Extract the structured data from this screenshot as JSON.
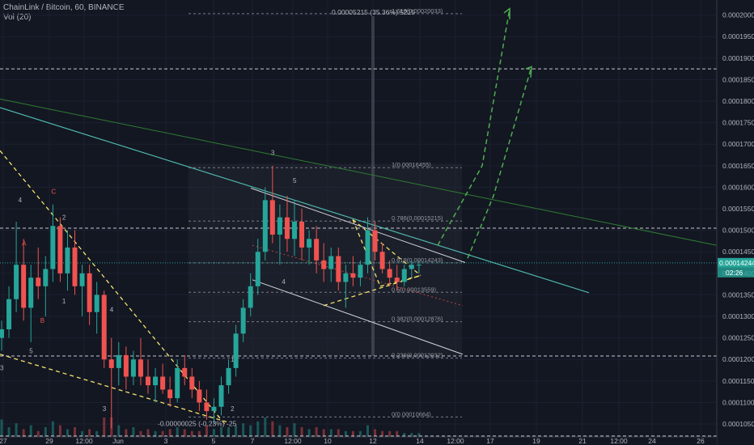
{
  "header": {
    "symbol_line": "ChainLink / Bitcoin, 60, BINANCE",
    "vol_line": "Vol (20)"
  },
  "colors": {
    "background": "#131722",
    "up_candle": "#26a69a",
    "down_candle": "#ef5350",
    "projection_arrow": "#4caf50",
    "trend_line_teal": "#4db6ac",
    "trend_line_green": "#2e7d32",
    "yellow_dashed": "#f5e36b",
    "price_tag": "#26a69a",
    "countdown_tag": "#26a69a"
  },
  "chart_data": {
    "type": "candlestick",
    "y_axis": {
      "scale": "linear",
      "range": [
        0.000102,
        0.0002035
      ],
      "ticks": [
        "0.00020000",
        "0.00019500",
        "0.00019000",
        "0.00018500",
        "0.00018000",
        "0.00017500",
        "0.00017000",
        "0.00016500",
        "0.00016000",
        "0.00015500",
        "0.00015000",
        "0.00014500",
        "0.00014000",
        "0.00013500",
        "0.00013000",
        "0.00012500",
        "0.00012000",
        "0.00011500",
        "0.00011000",
        "0.00010500"
      ],
      "tick_values": [
        0.0002,
        0.000195,
        0.00019,
        0.000185,
        0.00018,
        0.000175,
        0.00017,
        0.000165,
        0.00016,
        0.000155,
        0.00015,
        0.000145,
        0.00014,
        0.000135,
        0.00013,
        0.000125,
        0.00012,
        0.000115,
        0.00011,
        0.000105
      ],
      "current_price_label": "0.00014244",
      "current_price": 0.00014244,
      "countdown_label": "02:26"
    },
    "x_axis": {
      "ticks": [
        "27",
        "29",
        "12:00",
        "Jun",
        "3",
        "5",
        "7",
        "12:00",
        "10",
        "12",
        "14",
        "12:00",
        "17",
        "19",
        "21",
        "12:00",
        "24",
        "26"
      ]
    },
    "fibonacci": {
      "levels": [
        {
          "label": "1.618(0.00020033)",
          "value": 0.00020033
        },
        {
          "label": "1(0.00016455)",
          "value": 0.00016455
        },
        {
          "label": "0.786(0.00015215)",
          "value": 0.00015215
        },
        {
          "label": "0.618(0.00014243)",
          "value": 0.00014243
        },
        {
          "label": "0.5(0.00013559)",
          "value": 0.00013559
        },
        {
          "label": "0.382(0.00012876)",
          "value": 0.00012876
        },
        {
          "label": "0.236(0.00012032)",
          "value": 0.00012032
        },
        {
          "label": "0(0.00010664)",
          "value": 0.00010664
        }
      ]
    },
    "horizontal_levels": [
      0.0001875,
      0.0001505,
      0.0001208,
      0.0001022
    ],
    "measure_top_label": "0.00005215 (35.36%) 5215",
    "measure_bottom_label": "-0.00000025 (-0.23%) -25",
    "wave_labels": [
      {
        "text": "4",
        "color": "#b2b5be",
        "x": 2.5,
        "y": 0.0001565
      },
      {
        "text": "A",
        "color": "#ef5350",
        "x": 3.0,
        "y": 0.0001465
      },
      {
        "text": "B",
        "color": "#ef5350",
        "x": 5.5,
        "y": 0.0001285
      },
      {
        "text": "5",
        "color": "#b2b5be",
        "x": 4.0,
        "y": 0.0001215
      },
      {
        "text": "3",
        "color": "#b2b5be",
        "x": 0.0,
        "y": 0.0001175
      },
      {
        "text": "C",
        "color": "#ef5350",
        "x": 7.0,
        "y": 0.0001585
      },
      {
        "text": "2",
        "color": "#b2b5be",
        "x": 8.5,
        "y": 0.0001525
      },
      {
        "text": "1",
        "color": "#b2b5be",
        "x": 8.5,
        "y": 0.000133
      },
      {
        "text": "4",
        "color": "#b2b5be",
        "x": 15.0,
        "y": 0.000131
      },
      {
        "text": "3",
        "color": "#b2b5be",
        "x": 14.0,
        "y": 0.000108
      },
      {
        "text": "2",
        "color": "#b2b5be",
        "x": 31.5,
        "y": 0.000108
      },
      {
        "text": "1",
        "color": "#b2b5be",
        "x": 31.5,
        "y": 0.0001195
      },
      {
        "text": "3",
        "color": "#b2b5be",
        "x": 37.0,
        "y": 0.0001675
      },
      {
        "text": "5",
        "color": "#b2b5be",
        "x": 40.0,
        "y": 0.000161
      },
      {
        "text": "4",
        "color": "#b2b5be",
        "x": 38.5,
        "y": 0.0001375
      }
    ],
    "candles": [
      {
        "o": 0.000125,
        "h": 0.000129,
        "l": 0.000122,
        "c": 0.000127
      },
      {
        "o": 0.000127,
        "h": 0.000137,
        "l": 0.000125,
        "c": 0.000134
      },
      {
        "o": 0.000134,
        "h": 0.000152,
        "l": 0.000131,
        "c": 0.000142
      },
      {
        "o": 0.000142,
        "h": 0.000148,
        "l": 0.000129,
        "c": 0.000132
      },
      {
        "o": 0.000132,
        "h": 0.000142,
        "l": 0.000124,
        "c": 0.000139
      },
      {
        "o": 0.000139,
        "h": 0.000146,
        "l": 0.000134,
        "c": 0.000137
      },
      {
        "o": 0.000137,
        "h": 0.000144,
        "l": 0.00013,
        "c": 0.000141
      },
      {
        "o": 0.000141,
        "h": 0.000156,
        "l": 0.000138,
        "c": 0.000151
      },
      {
        "o": 0.000151,
        "h": 0.000153,
        "l": 0.000138,
        "c": 0.00014
      },
      {
        "o": 0.00014,
        "h": 0.00015,
        "l": 0.000136,
        "c": 0.000146
      },
      {
        "o": 0.000146,
        "h": 0.00015,
        "l": 0.000135,
        "c": 0.000137
      },
      {
        "o": 0.000137,
        "h": 0.000142,
        "l": 0.00013,
        "c": 0.00014
      },
      {
        "o": 0.00014,
        "h": 0.000142,
        "l": 0.000128,
        "c": 0.000131
      },
      {
        "o": 0.000131,
        "h": 0.000138,
        "l": 0.000126,
        "c": 0.000135
      },
      {
        "o": 0.000135,
        "h": 0.000136,
        "l": 0.000118,
        "c": 0.00012
      },
      {
        "o": 0.00012,
        "h": 0.000125,
        "l": 0.000104,
        "c": 0.000118
      },
      {
        "o": 0.000118,
        "h": 0.000124,
        "l": 0.000114,
        "c": 0.000121
      },
      {
        "o": 0.000121,
        "h": 0.000123,
        "l": 0.000113,
        "c": 0.000116
      },
      {
        "o": 0.000116,
        "h": 0.000122,
        "l": 0.000114,
        "c": 0.00012
      },
      {
        "o": 0.00012,
        "h": 0.000125,
        "l": 0.000114,
        "c": 0.000116
      },
      {
        "o": 0.000116,
        "h": 0.00012,
        "l": 0.000112,
        "c": 0.000114
      },
      {
        "o": 0.000114,
        "h": 0.000118,
        "l": 0.00011,
        "c": 0.000116
      },
      {
        "o": 0.000116,
        "h": 0.000119,
        "l": 0.000112,
        "c": 0.000113
      },
      {
        "o": 0.000113,
        "h": 0.000116,
        "l": 0.000109,
        "c": 0.000111
      },
      {
        "o": 0.000111,
        "h": 0.00012,
        "l": 0.00011,
        "c": 0.000118
      },
      {
        "o": 0.000118,
        "h": 0.000121,
        "l": 0.000114,
        "c": 0.000116
      },
      {
        "o": 0.000116,
        "h": 0.000118,
        "l": 0.000111,
        "c": 0.000113
      },
      {
        "o": 0.000113,
        "h": 0.000115,
        "l": 0.000108,
        "c": 0.00011
      },
      {
        "o": 0.00011,
        "h": 0.000113,
        "l": 0.000106,
        "c": 0.000108
      },
      {
        "o": 0.000108,
        "h": 0.000111,
        "l": 0.000105,
        "c": 0.000109
      },
      {
        "o": 0.000109,
        "h": 0.000116,
        "l": 0.000107,
        "c": 0.000114
      },
      {
        "o": 0.000114,
        "h": 0.00012,
        "l": 0.000112,
        "c": 0.000118
      },
      {
        "o": 0.000118,
        "h": 0.000128,
        "l": 0.000116,
        "c": 0.000126
      },
      {
        "o": 0.000126,
        "h": 0.000134,
        "l": 0.000124,
        "c": 0.000132
      },
      {
        "o": 0.000132,
        "h": 0.00014,
        "l": 0.00013,
        "c": 0.000137
      },
      {
        "o": 0.000137,
        "h": 0.000148,
        "l": 0.000135,
        "c": 0.000145
      },
      {
        "o": 0.000145,
        "h": 0.00016,
        "l": 0.000143,
        "c": 0.000157
      },
      {
        "o": 0.000157,
        "h": 0.000165,
        "l": 0.000147,
        "c": 0.000149
      },
      {
        "o": 0.000149,
        "h": 0.000156,
        "l": 0.000142,
        "c": 0.000153
      },
      {
        "o": 0.000153,
        "h": 0.000158,
        "l": 0.000145,
        "c": 0.000148
      },
      {
        "o": 0.000148,
        "h": 0.000157,
        "l": 0.000144,
        "c": 0.000152
      },
      {
        "o": 0.000152,
        "h": 0.000155,
        "l": 0.000143,
        "c": 0.000146
      },
      {
        "o": 0.000146,
        "h": 0.00015,
        "l": 0.000142,
        "c": 0.000148
      },
      {
        "o": 0.000148,
        "h": 0.000151,
        "l": 0.00014,
        "c": 0.000143
      },
      {
        "o": 0.000143,
        "h": 0.000147,
        "l": 0.000138,
        "c": 0.000141
      },
      {
        "o": 0.000141,
        "h": 0.000146,
        "l": 0.000138,
        "c": 0.000144
      },
      {
        "o": 0.000144,
        "h": 0.000146,
        "l": 0.000136,
        "c": 0.000138
      },
      {
        "o": 0.000138,
        "h": 0.000142,
        "l": 0.000132,
        "c": 0.00014
      },
      {
        "o": 0.00014,
        "h": 0.000144,
        "l": 0.000137,
        "c": 0.000139
      },
      {
        "o": 0.000139,
        "h": 0.000143,
        "l": 0.000137,
        "c": 0.000142
      },
      {
        "o": 0.000142,
        "h": 0.000153,
        "l": 0.00014,
        "c": 0.00015
      },
      {
        "o": 0.00015,
        "h": 0.000152,
        "l": 0.000143,
        "c": 0.000145
      },
      {
        "o": 0.000145,
        "h": 0.000147,
        "l": 0.00014,
        "c": 0.000141
      },
      {
        "o": 0.000141,
        "h": 0.000143,
        "l": 0.000137,
        "c": 0.000139
      },
      {
        "o": 0.000139,
        "h": 0.000142,
        "l": 0.000136,
        "c": 0.000138
      },
      {
        "o": 0.000138,
        "h": 0.000142,
        "l": 0.000137,
        "c": 0.000141
      },
      {
        "o": 0.000141,
        "h": 0.000143,
        "l": 0.000139,
        "c": 0.000142
      },
      {
        "o": 0.000142,
        "h": 0.000143,
        "l": 0.00014,
        "c": 0.000142
      }
    ],
    "volumes": [
      0.9,
      0.5,
      0.7,
      0.4,
      0.6,
      0.3,
      0.5,
      0.8,
      0.6,
      0.4,
      0.5,
      0.3,
      0.4,
      0.3,
      1.0,
      1.0,
      0.6,
      0.4,
      0.5,
      0.3,
      0.4,
      0.3,
      0.3,
      0.4,
      0.5,
      0.4,
      0.3,
      0.3,
      0.6,
      0.4,
      0.5,
      0.5,
      0.6,
      0.7,
      0.6,
      0.8,
      1.0,
      0.8,
      0.6,
      0.5,
      0.7,
      0.5,
      0.4,
      0.5,
      0.4,
      0.4,
      0.4,
      0.3,
      0.3,
      0.3,
      0.6,
      0.4,
      0.3,
      0.3,
      0.3,
      0.2,
      0.2,
      0.2
    ]
  }
}
